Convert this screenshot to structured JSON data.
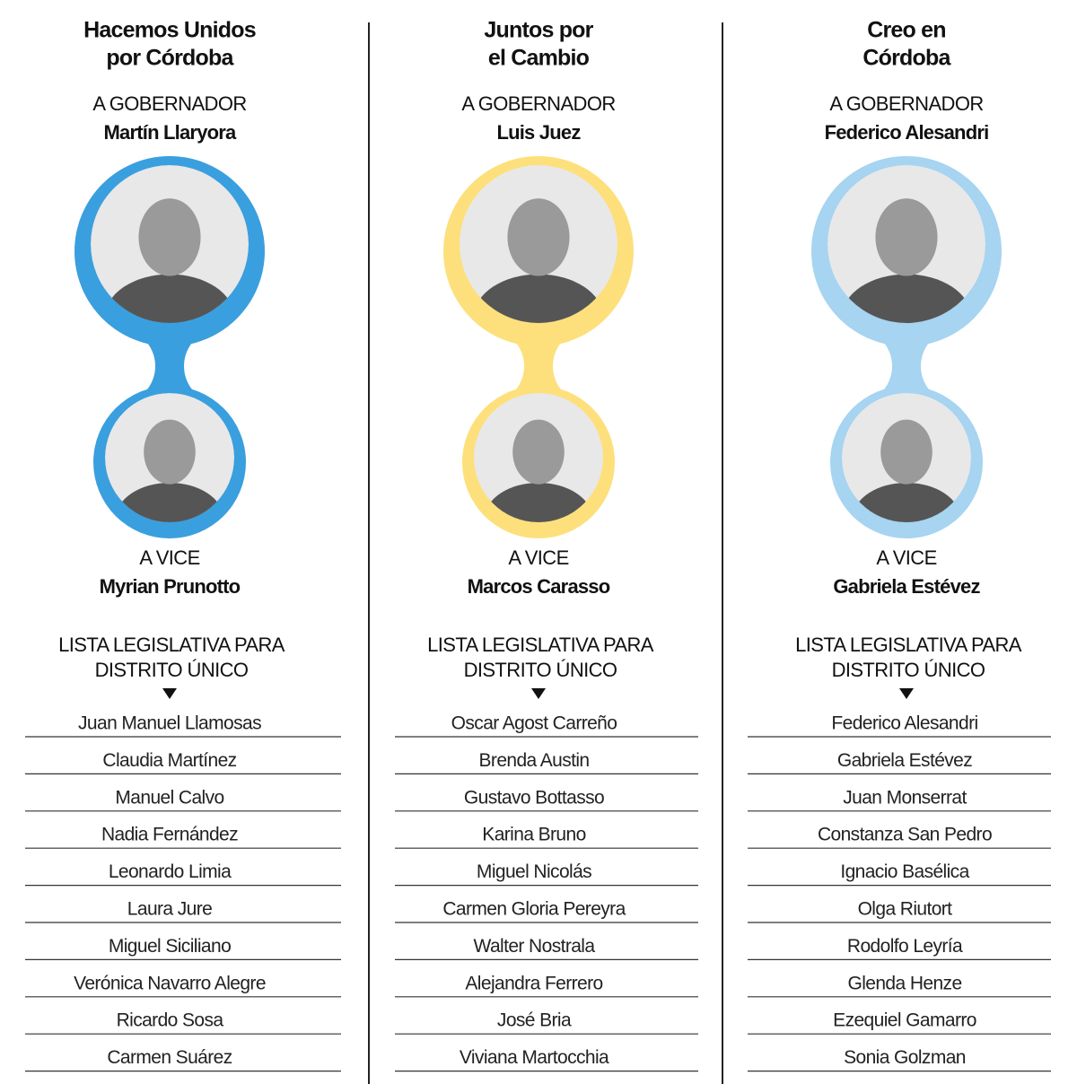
{
  "columns": [
    {
      "party": [
        "Hacemos Unidos",
        "por Córdoba"
      ],
      "governor_label": "A GOBERNADOR",
      "governor": "Martín Llaryora",
      "vice_label": "A VICE",
      "vice": "Myrian Prunotto",
      "list_heading": [
        "LISTA LEGISLATIVA PARA",
        "DISTRITO ÚNICO"
      ],
      "candidates": [
        "Juan Manuel Llamosas",
        "Claudia Martínez",
        "Manuel Calvo",
        "Nadia Fernández",
        "Leonardo Limia",
        "Laura Jure",
        "Miguel Siciliano",
        "Verónica Navarro Alegre",
        "Ricardo Sosa",
        "Carmen Suárez"
      ]
    },
    {
      "party": [
        "Juntos por",
        "el Cambio"
      ],
      "governor_label": "A GOBERNADOR",
      "governor": "Luis Juez",
      "vice_label": "A VICE",
      "vice": "Marcos Carasso",
      "list_heading": [
        "LISTA LEGISLATIVA PARA",
        "DISTRITO ÚNICO"
      ],
      "candidates": [
        "Oscar Agost Carreño",
        "Brenda Austin",
        "Gustavo Bottasso",
        "Karina Bruno",
        "Miguel Nicolás",
        "Carmen Gloria Pereyra",
        "Walter Nostrala",
        "Alejandra Ferrero",
        "José Bria",
        "Viviana Martocchia"
      ]
    },
    {
      "party": [
        "Creo en",
        "Córdoba"
      ],
      "governor_label": "A GOBERNADOR",
      "governor": "Federico Alesandri",
      "vice_label": "A VICE",
      "vice": "Gabriela Estévez",
      "list_heading": [
        "LISTA LEGISLATIVA PARA",
        "DISTRITO ÚNICO"
      ],
      "candidates": [
        "Federico Alesandri",
        "Gabriela Estévez",
        "Juan Monserrat",
        "Constanza San Pedro",
        "Ignacio Basélica",
        "Olga Riutort",
        "Rodolfo Leyría",
        "Glenda Henze",
        "Ezequiel Gamarro",
        "Sonia Golzman"
      ]
    }
  ]
}
